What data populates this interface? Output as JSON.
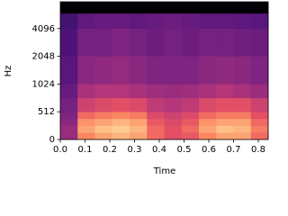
{
  "chart_data": {
    "type": "heatmap",
    "xlabel": "Time",
    "ylabel": "Hz",
    "colormap": "magma",
    "clim": [
      -80,
      0
    ],
    "yscale": "symlog",
    "linthresh": 512,
    "xlim": [
      0,
      0.84
    ],
    "ylim": [
      0,
      8000
    ],
    "xticks": [
      {
        "value": 0,
        "label": "0.0"
      },
      0.1,
      0.2,
      0.3,
      0.4,
      0.5,
      0.6,
      0.7,
      0.8
    ],
    "yticks": [
      0,
      512,
      1024,
      2048,
      4096
    ],
    "x_edges": [
      0,
      0.07,
      0.14,
      0.21,
      0.28,
      0.35,
      0.42,
      0.49,
      0.56,
      0.63,
      0.7,
      0.77,
      0.84
    ],
    "y_edges": [
      0,
      128,
      256,
      384,
      512,
      724,
      1024,
      2048,
      4096,
      6000,
      8000
    ],
    "values": [
      [
        -45,
        -20,
        -15,
        -12,
        -15,
        -25,
        -30,
        -28,
        -20,
        -15,
        -15,
        -25
      ],
      [
        -45,
        -15,
        -10,
        -8,
        -12,
        -25,
        -30,
        -25,
        -15,
        -10,
        -12,
        -22
      ],
      [
        -48,
        -18,
        -15,
        -12,
        -15,
        -28,
        -32,
        -28,
        -18,
        -15,
        -15,
        -25
      ],
      [
        -50,
        -25,
        -22,
        -20,
        -22,
        -32,
        -35,
        -32,
        -25,
        -22,
        -22,
        -30
      ],
      [
        -52,
        -35,
        -32,
        -30,
        -32,
        -38,
        -40,
        -38,
        -32,
        -30,
        -30,
        -35
      ],
      [
        -55,
        -42,
        -40,
        -40,
        -42,
        -44,
        -45,
        -44,
        -42,
        -40,
        -42,
        -45
      ],
      [
        -58,
        -48,
        -47,
        -46,
        -48,
        -50,
        -50,
        -50,
        -48,
        -47,
        -48,
        -50
      ],
      [
        -60,
        -52,
        -52,
        -50,
        -52,
        -54,
        -52,
        -54,
        -52,
        -52,
        -53,
        -54
      ],
      [
        -62,
        -56,
        -55,
        -55,
        -56,
        -55,
        -54,
        -55,
        -56,
        -56,
        -57,
        -58
      ],
      [
        -80,
        -80,
        -80,
        -80,
        -80,
        -80,
        -80,
        -80,
        -80,
        -80,
        -80,
        -80
      ]
    ]
  }
}
